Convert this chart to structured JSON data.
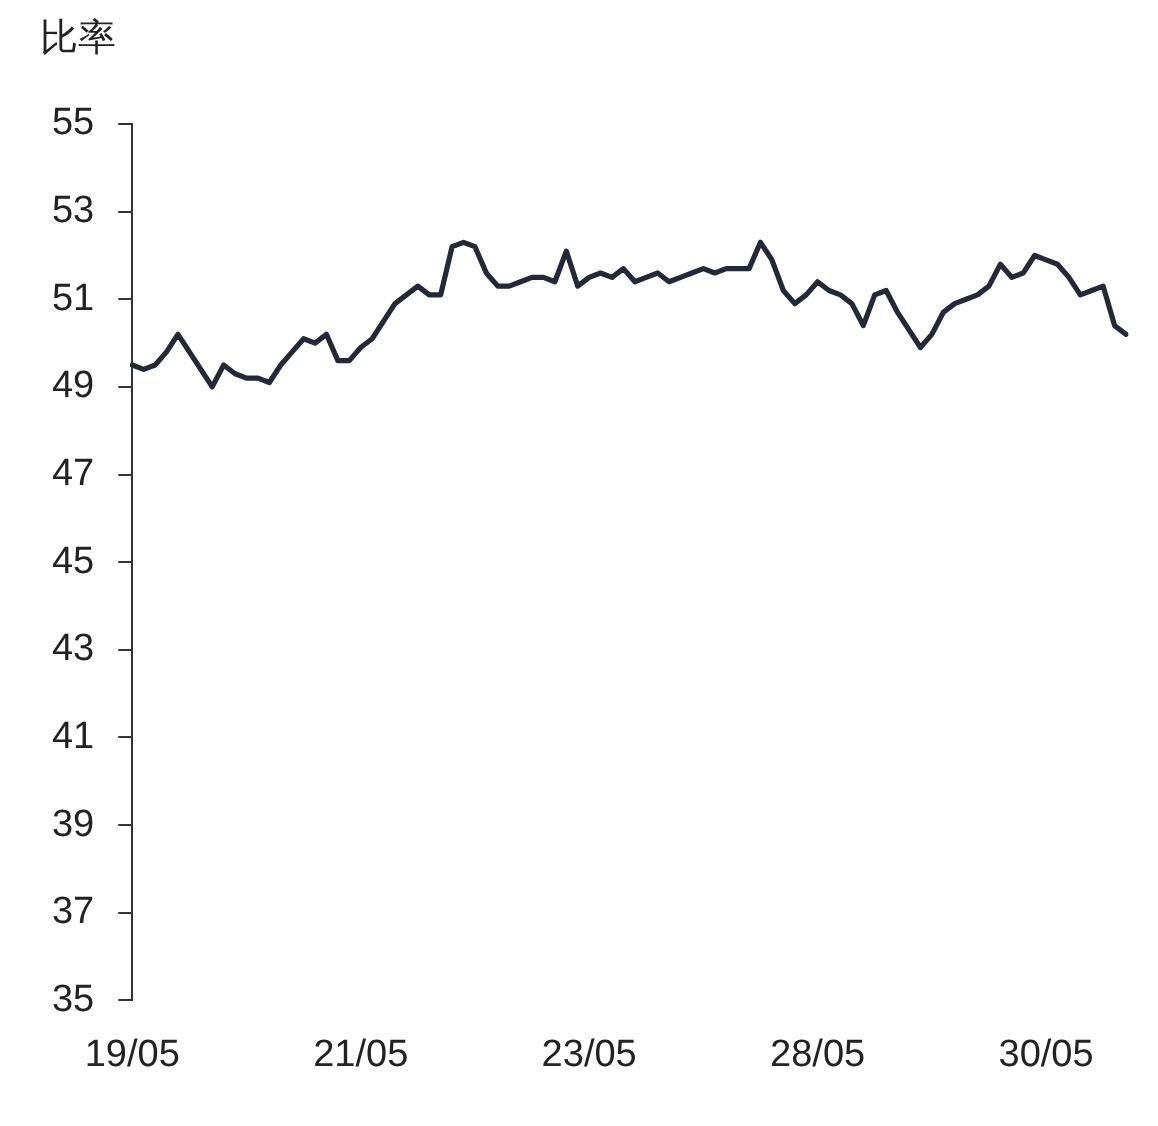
{
  "chart_data": {
    "type": "line",
    "ylabel": "比率",
    "categories": [
      "19/05",
      null,
      null,
      null,
      null,
      null,
      null,
      null,
      null,
      null,
      null,
      null,
      null,
      null,
      null,
      null,
      null,
      null,
      null,
      null,
      "21/05",
      null,
      null,
      null,
      null,
      null,
      null,
      null,
      null,
      null,
      null,
      null,
      null,
      null,
      null,
      null,
      null,
      null,
      null,
      null,
      "23/05",
      null,
      null,
      null,
      null,
      null,
      null,
      null,
      null,
      null,
      null,
      null,
      null,
      null,
      null,
      null,
      null,
      null,
      null,
      null,
      "28/05",
      null,
      null,
      null,
      null,
      null,
      null,
      null,
      null,
      null,
      null,
      null,
      null,
      null,
      null,
      null,
      null,
      null,
      null,
      null,
      "30/05",
      null,
      null,
      null,
      null,
      null,
      null,
      null
    ],
    "series": [
      {
        "color": "#232937",
        "values": [
          49.5,
          49.4,
          49.5,
          49.8,
          50.2,
          49.8,
          49.4,
          49.0,
          49.5,
          49.3,
          49.2,
          49.2,
          49.1,
          49.5,
          49.8,
          50.1,
          50.0,
          50.2,
          49.6,
          49.6,
          49.9,
          50.1,
          50.5,
          50.9,
          51.1,
          51.3,
          51.1,
          51.1,
          52.2,
          52.3,
          52.2,
          51.6,
          51.3,
          51.3,
          51.4,
          51.5,
          51.5,
          51.4,
          52.1,
          51.3,
          51.5,
          51.6,
          51.5,
          51.7,
          51.4,
          51.5,
          51.6,
          51.4,
          51.5,
          51.6,
          51.7,
          51.6,
          51.7,
          51.7,
          51.7,
          52.3,
          51.9,
          51.2,
          50.9,
          51.1,
          51.4,
          51.2,
          51.1,
          50.9,
          50.4,
          51.1,
          51.2,
          50.7,
          50.3,
          49.9,
          50.2,
          50.7,
          50.9,
          51.0,
          51.1,
          51.3,
          51.8,
          51.5,
          51.6,
          52.0,
          51.9,
          51.8,
          51.5,
          51.1,
          51.2,
          51.3,
          50.4,
          50.2
        ]
      }
    ],
    "ylim": [
      35,
      55
    ],
    "yticks": [
      35,
      37,
      39,
      41,
      43,
      45,
      47,
      49,
      51,
      53,
      55
    ],
    "grid": false,
    "legend": false,
    "marker": "none",
    "line_style": "solid"
  }
}
